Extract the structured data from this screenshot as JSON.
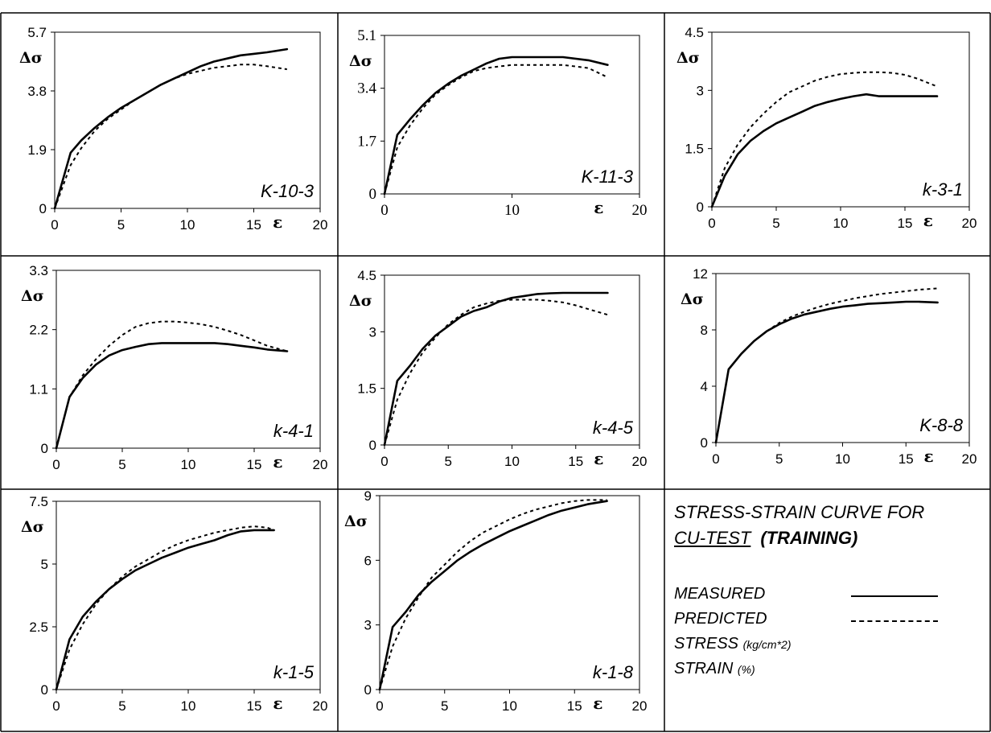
{
  "chart_data": [
    {
      "type": "line",
      "title": "K-10-3",
      "xlabel": "ε",
      "ylabel": "Δσ",
      "xlim": [
        0,
        20
      ],
      "ylim": [
        0,
        5.7
      ],
      "xticks": [
        "0",
        "5",
        "10",
        "15",
        "20"
      ],
      "yticks": [
        "0",
        "1.9",
        "3.8",
        "5.7"
      ],
      "series": [
        {
          "name": "MEASURED",
          "x": [
            0,
            1.2,
            2,
            3,
            4,
            5,
            6,
            7,
            8,
            9,
            10,
            11,
            12,
            13,
            14,
            15,
            16,
            17.5
          ],
          "y": [
            0,
            1.8,
            2.2,
            2.6,
            2.95,
            3.25,
            3.5,
            3.75,
            4.0,
            4.2,
            4.4,
            4.6,
            4.75,
            4.85,
            4.95,
            5.0,
            5.05,
            5.15
          ]
        },
        {
          "name": "PREDICTED",
          "x": [
            0,
            1.2,
            2,
            3,
            4,
            5,
            6,
            7,
            8,
            9,
            10,
            11,
            12,
            13,
            14,
            15,
            16,
            17.5
          ],
          "y": [
            0,
            1.4,
            1.95,
            2.5,
            2.9,
            3.2,
            3.5,
            3.75,
            4.0,
            4.2,
            4.35,
            4.45,
            4.55,
            4.6,
            4.65,
            4.65,
            4.6,
            4.5
          ]
        }
      ]
    },
    {
      "type": "line",
      "title": "K-11-3",
      "xlabel": "ε",
      "ylabel": "Δσ",
      "xlim": [
        0,
        20
      ],
      "ylim": [
        0,
        5.1
      ],
      "xticks": [
        "0",
        "10",
        "20"
      ],
      "yticks": [
        "0",
        "1.7",
        "3.4",
        "5.1"
      ],
      "series": [
        {
          "name": "MEASURED",
          "x": [
            0,
            1,
            2,
            3,
            4,
            5,
            6,
            7,
            8,
            9,
            10,
            12,
            14,
            16,
            17.5
          ],
          "y": [
            0,
            1.9,
            2.4,
            2.85,
            3.25,
            3.55,
            3.8,
            4.0,
            4.2,
            4.35,
            4.4,
            4.4,
            4.4,
            4.3,
            4.15
          ]
        },
        {
          "name": "PREDICTED",
          "x": [
            0,
            1,
            2,
            3,
            4,
            5,
            6,
            7,
            8,
            9,
            10,
            12,
            14,
            16,
            17.5
          ],
          "y": [
            0,
            1.5,
            2.2,
            2.75,
            3.2,
            3.5,
            3.75,
            3.95,
            4.05,
            4.1,
            4.15,
            4.15,
            4.15,
            4.05,
            3.75
          ]
        }
      ]
    },
    {
      "type": "line",
      "title": "k-3-1",
      "xlabel": "ε",
      "ylabel": "Δσ",
      "xlim": [
        0,
        20
      ],
      "ylim": [
        0,
        4.5
      ],
      "xticks": [
        "0",
        "5",
        "10",
        "15",
        "20"
      ],
      "yticks": [
        "0",
        "1.5",
        "3",
        "4.5"
      ],
      "series": [
        {
          "name": "MEASURED",
          "x": [
            0,
            1,
            2,
            3,
            4,
            5,
            6,
            7,
            8,
            9,
            10,
            11,
            12,
            13,
            14,
            15,
            16,
            17.5
          ],
          "y": [
            0,
            0.8,
            1.35,
            1.7,
            1.95,
            2.15,
            2.3,
            2.45,
            2.6,
            2.7,
            2.78,
            2.85,
            2.9,
            2.85,
            2.85,
            2.85,
            2.85,
            2.85
          ]
        },
        {
          "name": "PREDICTED",
          "x": [
            0,
            1,
            2,
            3,
            4,
            5,
            6,
            7,
            8,
            9,
            10,
            11,
            12,
            13,
            14,
            15,
            16,
            17.5
          ],
          "y": [
            0,
            1.0,
            1.6,
            2.05,
            2.4,
            2.7,
            2.95,
            3.1,
            3.25,
            3.35,
            3.42,
            3.45,
            3.47,
            3.47,
            3.45,
            3.4,
            3.3,
            3.1
          ]
        }
      ]
    },
    {
      "type": "line",
      "title": "k-4-1",
      "xlabel": "ε",
      "ylabel": "Δσ",
      "xlim": [
        0,
        20
      ],
      "ylim": [
        0,
        3.3
      ],
      "xticks": [
        "0",
        "5",
        "10",
        "15",
        "20"
      ],
      "yticks": [
        "0",
        "1.1",
        "2.2",
        "3.3"
      ],
      "series": [
        {
          "name": "MEASURED",
          "x": [
            0,
            1,
            2,
            3,
            4,
            5,
            6,
            7,
            8,
            9,
            10,
            11,
            12,
            13,
            14,
            15,
            16,
            17.5
          ],
          "y": [
            0,
            0.95,
            1.3,
            1.55,
            1.72,
            1.82,
            1.88,
            1.93,
            1.95,
            1.95,
            1.95,
            1.95,
            1.95,
            1.93,
            1.9,
            1.87,
            1.83,
            1.8
          ]
        },
        {
          "name": "PREDICTED",
          "x": [
            0,
            1,
            2,
            3,
            4,
            5,
            6,
            7,
            8,
            9,
            10,
            11,
            12,
            13,
            14,
            15,
            16,
            17.5
          ],
          "y": [
            0,
            0.95,
            1.35,
            1.65,
            1.9,
            2.1,
            2.25,
            2.32,
            2.35,
            2.35,
            2.33,
            2.3,
            2.25,
            2.18,
            2.1,
            2.0,
            1.9,
            1.8
          ]
        }
      ]
    },
    {
      "type": "line",
      "title": "k-4-5",
      "xlabel": "ε",
      "ylabel": "Δσ",
      "xlim": [
        0,
        20
      ],
      "ylim": [
        0,
        4.5
      ],
      "xticks": [
        "0",
        "5",
        "10",
        "15",
        "20"
      ],
      "yticks": [
        "0",
        "1.5",
        "3",
        "4.5"
      ],
      "series": [
        {
          "name": "MEASURED",
          "x": [
            0,
            1,
            2,
            3,
            4,
            5,
            6,
            7,
            8,
            9,
            10,
            11,
            12,
            13,
            14,
            15,
            16,
            17.5
          ],
          "y": [
            0,
            1.7,
            2.1,
            2.55,
            2.9,
            3.15,
            3.4,
            3.55,
            3.65,
            3.8,
            3.9,
            3.95,
            4.0,
            4.02,
            4.03,
            4.03,
            4.03,
            4.03
          ]
        },
        {
          "name": "PREDICTED",
          "x": [
            0,
            1,
            2,
            3,
            4,
            5,
            6,
            7,
            8,
            9,
            10,
            11,
            12,
            13,
            14,
            15,
            16,
            17.5
          ],
          "y": [
            0,
            1.2,
            1.9,
            2.45,
            2.85,
            3.2,
            3.45,
            3.65,
            3.75,
            3.82,
            3.85,
            3.85,
            3.85,
            3.82,
            3.78,
            3.7,
            3.6,
            3.45
          ]
        }
      ]
    },
    {
      "type": "line",
      "title": "K-8-8",
      "xlabel": "ε",
      "ylabel": "Δσ",
      "xlim": [
        0,
        20
      ],
      "ylim": [
        0,
        12
      ],
      "xticks": [
        "0",
        "5",
        "10",
        "15",
        "20"
      ],
      "yticks": [
        "0",
        "4",
        "8",
        "12"
      ],
      "series": [
        {
          "name": "MEASURED",
          "x": [
            0,
            1,
            2,
            3,
            4,
            5,
            6,
            7,
            8,
            9,
            10,
            11,
            12,
            13,
            14,
            15,
            16,
            17.5
          ],
          "y": [
            0,
            5.2,
            6.3,
            7.2,
            7.9,
            8.4,
            8.8,
            9.1,
            9.3,
            9.5,
            9.65,
            9.75,
            9.85,
            9.9,
            9.95,
            10.0,
            10.0,
            9.95
          ]
        },
        {
          "name": "PREDICTED",
          "x": [
            0,
            1,
            2,
            3,
            4,
            5,
            6,
            7,
            8,
            9,
            10,
            11,
            12,
            13,
            14,
            15,
            16,
            17.5
          ],
          "y": [
            0,
            5.2,
            6.3,
            7.2,
            7.9,
            8.5,
            8.95,
            9.3,
            9.6,
            9.85,
            10.05,
            10.25,
            10.4,
            10.55,
            10.65,
            10.75,
            10.85,
            10.95
          ]
        }
      ]
    },
    {
      "type": "line",
      "title": "k-1-5",
      "xlabel": "ε",
      "ylabel": "Δσ",
      "xlim": [
        0,
        20
      ],
      "ylim": [
        0,
        7.5
      ],
      "xticks": [
        "0",
        "5",
        "10",
        "15",
        "20"
      ],
      "yticks": [
        "0",
        "2.5",
        "5",
        "7.5"
      ],
      "series": [
        {
          "name": "MEASURED",
          "x": [
            0,
            1,
            2,
            3,
            4,
            5,
            6,
            7,
            8,
            9,
            10,
            11,
            12,
            13,
            14,
            15,
            16,
            16.5
          ],
          "y": [
            0,
            2.0,
            2.9,
            3.5,
            4.0,
            4.4,
            4.75,
            5.0,
            5.25,
            5.45,
            5.65,
            5.8,
            5.95,
            6.15,
            6.3,
            6.35,
            6.35,
            6.35
          ]
        },
        {
          "name": "PREDICTED",
          "x": [
            0,
            1,
            2,
            3,
            4,
            5,
            6,
            7,
            8,
            9,
            10,
            11,
            12,
            13,
            14,
            15,
            16,
            16.5
          ],
          "y": [
            0,
            1.6,
            2.6,
            3.4,
            4.0,
            4.5,
            4.9,
            5.2,
            5.5,
            5.75,
            5.95,
            6.1,
            6.25,
            6.35,
            6.45,
            6.5,
            6.45,
            6.35
          ]
        }
      ]
    },
    {
      "type": "line",
      "title": "k-1-8",
      "xlabel": "ε",
      "ylabel": "Δσ",
      "xlim": [
        0,
        20
      ],
      "ylim": [
        0,
        9
      ],
      "xticks": [
        "0",
        "5",
        "10",
        "15",
        "20"
      ],
      "yticks": [
        "0",
        "3",
        "6",
        "9"
      ],
      "series": [
        {
          "name": "MEASURED",
          "x": [
            0,
            1,
            2,
            3,
            4,
            5,
            6,
            7,
            8,
            9,
            10,
            11,
            12,
            13,
            14,
            15,
            16,
            17.5
          ],
          "y": [
            0,
            2.9,
            3.6,
            4.4,
            5.0,
            5.5,
            6.0,
            6.4,
            6.75,
            7.05,
            7.35,
            7.6,
            7.85,
            8.1,
            8.3,
            8.45,
            8.6,
            8.75
          ]
        },
        {
          "name": "PREDICTED",
          "x": [
            0,
            1,
            2,
            3,
            4,
            5,
            6,
            7,
            8,
            9,
            10,
            11,
            12,
            13,
            14,
            15,
            16,
            17.5
          ],
          "y": [
            0,
            2.0,
            3.3,
            4.3,
            5.2,
            5.8,
            6.4,
            6.9,
            7.3,
            7.6,
            7.9,
            8.15,
            8.35,
            8.5,
            8.65,
            8.75,
            8.8,
            8.8
          ]
        }
      ]
    }
  ],
  "legend": {
    "heading_line1": "STRESS-STRAIN CURVE  FOR",
    "heading_underlined": "CU-TEST",
    "heading_bold": "(TRAINING)",
    "measured": "MEASURED",
    "predicted": "PREDICTED",
    "stress_label": "STRESS",
    "stress_unit": "(kg/cm*2)",
    "strain_label": "STRAIN",
    "strain_unit": "(%)"
  }
}
